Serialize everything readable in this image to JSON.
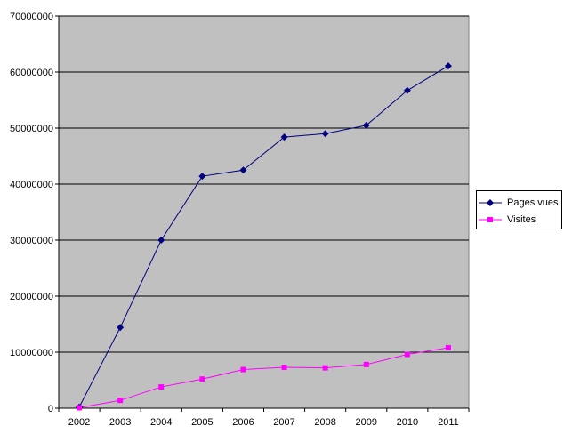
{
  "chart_data": {
    "type": "line",
    "title": "",
    "xlabel": "",
    "ylabel": "",
    "categories": [
      "2002",
      "2003",
      "2004",
      "2005",
      "2006",
      "2007",
      "2008",
      "2009",
      "2010",
      "2011"
    ],
    "ylim": [
      0,
      70000000
    ],
    "yticks": [
      "0",
      "10000000",
      "20000000",
      "30000000",
      "40000000",
      "50000000",
      "60000000",
      "70000000"
    ],
    "grid": true,
    "legend_position": "right",
    "plot_background": "#c0c0c0",
    "series": [
      {
        "name": "Pages vues",
        "color": "#000080",
        "marker": "diamond",
        "values": [
          200000,
          14400000,
          30000000,
          41400000,
          42500000,
          48400000,
          49000000,
          50500000,
          56700000,
          61100000
        ]
      },
      {
        "name": "Visites",
        "color": "#ff00ff",
        "marker": "square",
        "values": [
          100000,
          1400000,
          3800000,
          5200000,
          6900000,
          7300000,
          7200000,
          7800000,
          9600000,
          10800000
        ]
      }
    ]
  }
}
